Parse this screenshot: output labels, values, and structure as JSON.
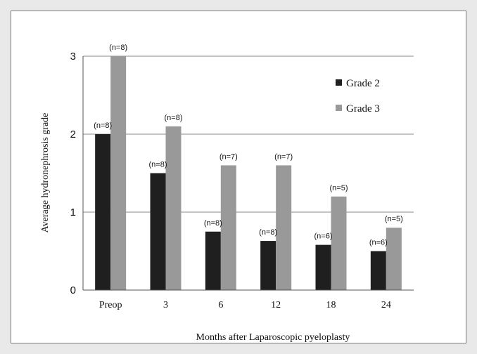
{
  "chart_data": {
    "type": "bar",
    "title": "",
    "xlabel": "Months after Laparoscopic pyeloplasty",
    "ylabel": "Average hydronephrosis grade",
    "categories": [
      "Preop",
      "3",
      "6",
      "12",
      "18",
      "24"
    ],
    "ylim": [
      0,
      3
    ],
    "yticks": [
      "0",
      "1",
      "2",
      "3"
    ],
    "grid": true,
    "legend_position": "top-right",
    "series": [
      {
        "name": "Grade 2",
        "color": "#1f1f1f",
        "values": [
          2.0,
          1.5,
          0.75,
          0.63,
          0.58,
          0.5
        ],
        "labels": [
          "(n=8)",
          "(n=8)",
          "(n=8)",
          "(n=8)",
          "(n=6)",
          "(n=6)"
        ]
      },
      {
        "name": "Grade 3",
        "color": "#999999",
        "values": [
          3.0,
          2.1,
          1.6,
          1.6,
          1.2,
          0.8
        ],
        "labels": [
          "(n=8)",
          "(n=8)",
          "(n=7)",
          "(n=7)",
          "(n=5)",
          "(n=5)"
        ]
      }
    ]
  }
}
